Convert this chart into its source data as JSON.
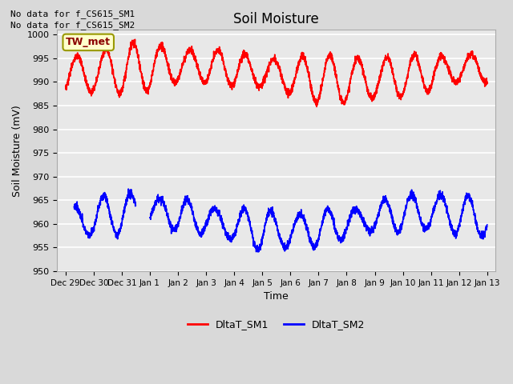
{
  "title": "Soil Moisture",
  "ylabel": "Soil Moisture (mV)",
  "xlabel": "Time",
  "ylim": [
    950,
    1001
  ],
  "yticks": [
    950,
    955,
    960,
    965,
    970,
    975,
    980,
    985,
    990,
    995,
    1000
  ],
  "fig_bg_color": "#d9d9d9",
  "plot_bg_color": "#e8e8e8",
  "line1_color": "red",
  "line2_color": "blue",
  "line1_label": "DltaT_SM1",
  "line2_label": "DltaT_SM2",
  "annotations": [
    "No data for f_CS615_SM1",
    "No data for f_CS615_SM2"
  ],
  "legend_label": "TW_met",
  "xtick_labels": [
    "Dec 29",
    "Dec 30",
    "Dec 31",
    "Jan 1",
    "Jan 2",
    "Jan 3",
    "Jan 4",
    "Jan 5",
    "Jan 6",
    "Jan 7",
    "Jan 8",
    "Jan 9",
    "Jan 10",
    "Jan 11",
    "Jan 12",
    "Jan 13"
  ],
  "num_days": 15
}
